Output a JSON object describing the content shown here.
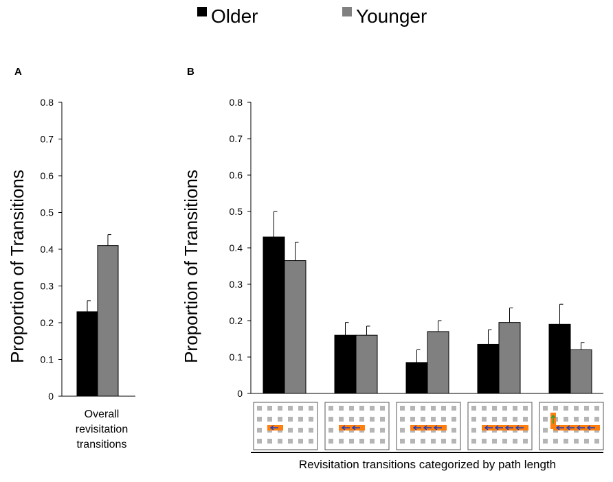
{
  "legend": {
    "items": [
      {
        "label": "Older",
        "color": "#000000"
      },
      {
        "label": "Younger",
        "color": "#808080"
      }
    ]
  },
  "colors": {
    "older": "#000000",
    "younger": "#808080",
    "axis": "#000000",
    "grid_cell": "#b5b5b5",
    "path_orange": "#ff7f0e",
    "arrow_blue": "#1f3fbf",
    "arrow_green": "#2e9e3e"
  },
  "chart_data": [
    {
      "panel_label": "A",
      "type": "bar",
      "ylabel": "Proportion of Transitions",
      "ylim": [
        0,
        0.8
      ],
      "yticks": [
        0,
        0.1,
        0.2,
        0.3,
        0.4,
        0.5,
        0.6,
        0.7,
        0.8
      ],
      "ytick_labels": [
        "0",
        "0.1",
        "0.2",
        "0.3",
        "0.4",
        "0.5",
        "0.6",
        "0.7",
        "0.8"
      ],
      "categories": [
        "Overall revisitation transitions"
      ],
      "category_label_lines": [
        "Overall",
        "revisitation",
        "transitions"
      ],
      "series": [
        {
          "name": "Older",
          "values": [
            0.23
          ],
          "errors": [
            0.03
          ]
        },
        {
          "name": "Younger",
          "values": [
            0.41
          ],
          "errors": [
            0.03
          ]
        }
      ]
    },
    {
      "panel_label": "B",
      "type": "bar",
      "ylabel": "Proportion of Transitions",
      "xlabel": "Revisitation transitions categorized by path length",
      "ylim": [
        0,
        0.8
      ],
      "yticks": [
        0,
        0.1,
        0.2,
        0.3,
        0.4,
        0.5,
        0.6,
        0.7,
        0.8
      ],
      "ytick_labels": [
        "0",
        "0.1",
        "0.2",
        "0.3",
        "0.4",
        "0.5",
        "0.6",
        "0.7",
        "0.8"
      ],
      "categories": [
        "path length 1",
        "path length 2",
        "path length 3",
        "path length 4",
        "path length 5"
      ],
      "category_icons": [
        {
          "arrows": 1,
          "has_turn": false
        },
        {
          "arrows": 2,
          "has_turn": false
        },
        {
          "arrows": 3,
          "has_turn": false
        },
        {
          "arrows": 4,
          "has_turn": false
        },
        {
          "arrows": 4,
          "has_turn": true
        }
      ],
      "series": [
        {
          "name": "Older",
          "values": [
            0.43,
            0.16,
            0.085,
            0.135,
            0.19
          ],
          "errors": [
            0.07,
            0.035,
            0.035,
            0.04,
            0.055
          ]
        },
        {
          "name": "Younger",
          "values": [
            0.365,
            0.16,
            0.17,
            0.195,
            0.12
          ],
          "errors": [
            0.05,
            0.025,
            0.03,
            0.04,
            0.02
          ]
        }
      ]
    }
  ]
}
